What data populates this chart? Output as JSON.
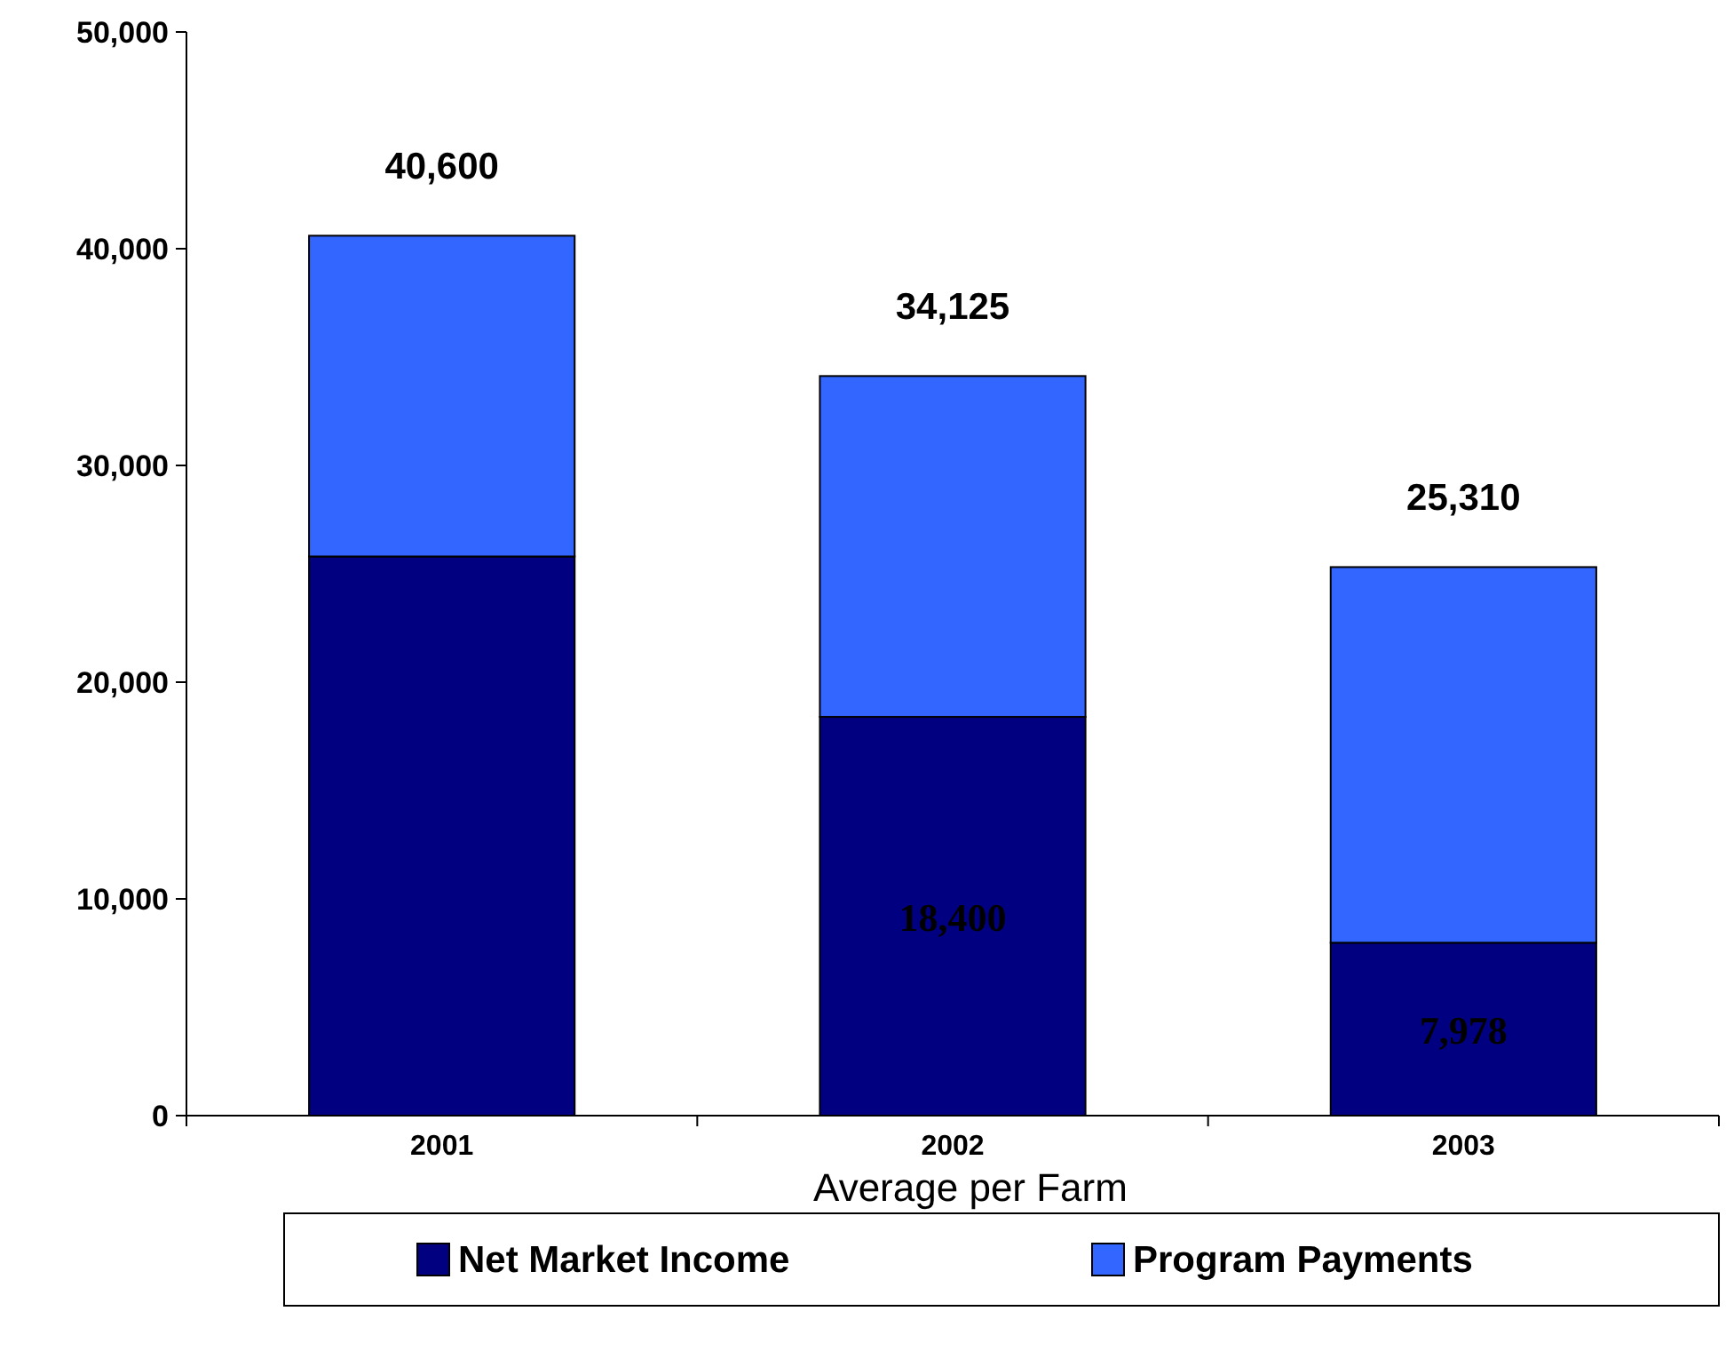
{
  "chart_data": {
    "type": "bar",
    "stacked": true,
    "xlabel": "Average per Farm",
    "categories": [
      "2001",
      "2002",
      "2003"
    ],
    "series": [
      {
        "name": "Net Market Income",
        "color": "#000080",
        "values": [
          25800,
          18400,
          7978
        ],
        "value_labels": [
          null,
          "18,400",
          "7,978"
        ]
      },
      {
        "name": "Program Payments",
        "color": "#3366ff",
        "values": [
          14800,
          15725,
          17332
        ]
      }
    ],
    "totals": [
      "40,600",
      "34,125",
      "25,310"
    ],
    "ylim": [
      0,
      50000
    ],
    "yticks": [
      {
        "value": 0,
        "label": "0"
      },
      {
        "value": 10000,
        "label": "10,000"
      },
      {
        "value": 20000,
        "label": "20,000"
      },
      {
        "value": 30000,
        "label": "30,000"
      },
      {
        "value": 40000,
        "label": "40,000"
      },
      {
        "value": 50000,
        "label": "50,000"
      }
    ],
    "grid": false,
    "legend": "bottom"
  }
}
